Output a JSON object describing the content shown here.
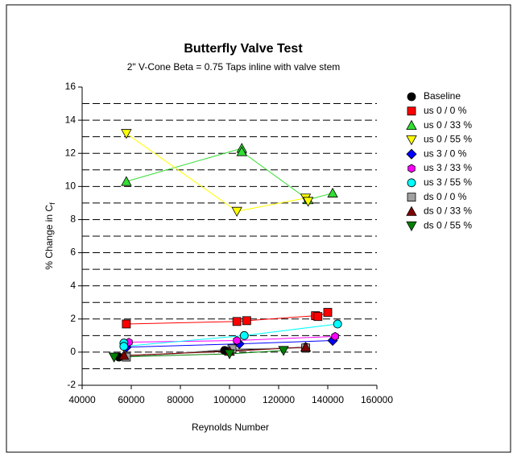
{
  "chart_data": {
    "type": "scatter",
    "title": "Butterfly Valve Test",
    "subtitle": "2\" V-Cone Beta = 0.75  Taps inline with valve stem",
    "xlabel": "Reynolds Number",
    "ylabel": {
      "text": "% Change in C",
      "subscript": "f"
    },
    "xlim": [
      40000,
      160000
    ],
    "xticks": [
      40000,
      60000,
      80000,
      100000,
      120000,
      140000,
      160000
    ],
    "ylim": [
      -2,
      16
    ],
    "yticks": [
      -2,
      0,
      2,
      4,
      6,
      8,
      10,
      12,
      14,
      16
    ],
    "minor_yticks": [
      -1,
      1,
      3,
      5,
      7,
      9,
      11,
      13,
      15
    ],
    "grid": true,
    "legend": "right",
    "series": [
      {
        "name": "Baseline",
        "color": "#000000",
        "marker": "circle",
        "x": [
          55000,
          98000,
          131000
        ],
        "values": [
          -0.3,
          0.1,
          0.3
        ]
      },
      {
        "name": "us 0 / 0 %",
        "color": "#ff0000",
        "marker": "square",
        "x": [
          58000,
          103000,
          107000,
          135000,
          136000,
          140000
        ],
        "values": [
          1.7,
          1.85,
          1.9,
          2.2,
          2.15,
          2.4
        ]
      },
      {
        "name": "us 0 / 33 %",
        "color": "#33dd33",
        "marker": "triangle-up",
        "x": [
          58000,
          105000,
          105000,
          132000,
          142000
        ],
        "values": [
          10.3,
          12.3,
          12.1,
          9.2,
          9.6
        ]
      },
      {
        "name": "us 0 / 55 %",
        "color": "#ffff00",
        "marker": "triangle-down",
        "x": [
          58000,
          103000,
          131000,
          132000
        ],
        "values": [
          13.2,
          8.5,
          9.3,
          9.1
        ]
      },
      {
        "name": "us 3 / 0 %",
        "color": "#0000ff",
        "marker": "diamond",
        "x": [
          58000,
          104000,
          142000
        ],
        "values": [
          0.3,
          0.5,
          0.7
        ]
      },
      {
        "name": "us 3 / 33 %",
        "color": "#ff00ff",
        "marker": "hexagon",
        "x": [
          59000,
          103000,
          143000
        ],
        "values": [
          0.6,
          0.7,
          0.95
        ]
      },
      {
        "name": "us 3 / 55 %",
        "color": "#00ffff",
        "marker": "circle",
        "x": [
          57000,
          57000,
          106000,
          144000
        ],
        "values": [
          0.55,
          0.35,
          1.0,
          1.7
        ]
      },
      {
        "name": "ds 0 / 0 %",
        "color": "#a0a0a0",
        "marker": "square",
        "x": [
          58000,
          101000,
          131000
        ],
        "values": [
          -0.3,
          0.2,
          0.25
        ]
      },
      {
        "name": "ds 0 / 33 %",
        "color": "#800000",
        "marker": "triangle-up",
        "x": [
          57000,
          100000,
          131000
        ],
        "values": [
          -0.2,
          0.05,
          0.3
        ]
      },
      {
        "name": "ds 0 / 55 %",
        "color": "#008000",
        "marker": "triangle-down",
        "x": [
          53000,
          100000,
          122000
        ],
        "values": [
          -0.3,
          -0.1,
          0.1
        ]
      }
    ]
  }
}
